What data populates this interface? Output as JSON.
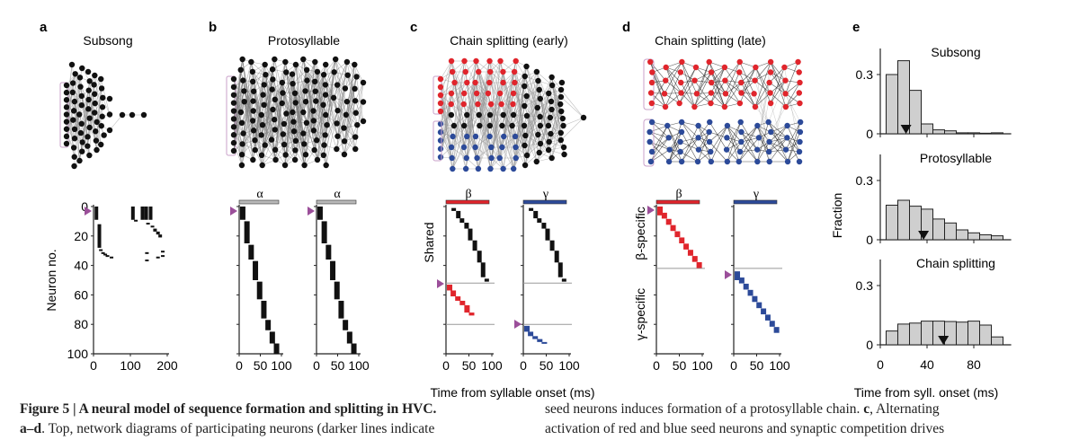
{
  "panels": [
    {
      "letter": "a",
      "title": "Subsong"
    },
    {
      "letter": "b",
      "title": "Protosyllable"
    },
    {
      "letter": "c",
      "title": "Chain splitting (early)"
    },
    {
      "letter": "d",
      "title": "Chain splitting (late)"
    },
    {
      "letter": "e"
    }
  ],
  "colors": {
    "red": "#e0252c",
    "blue": "#2c4a99",
    "seed": "#9b4f9a",
    "bar_fill": "#cfcfcf",
    "gray_bar": "#b8b8b8"
  },
  "raster": {
    "a": {
      "ylabel": "Neuron no.",
      "yticks": [
        "0",
        "20",
        "40",
        "60",
        "80",
        "100"
      ],
      "xticks": [
        "0",
        "100",
        "200"
      ]
    },
    "b": {
      "labels": [
        "α",
        "α"
      ],
      "xticks": [
        "0",
        "50",
        "100"
      ]
    },
    "c": {
      "labels": [
        "β",
        "γ"
      ],
      "ylabel": "Shared",
      "xticks": [
        "0",
        "50",
        "100"
      ]
    },
    "d": {
      "labels": [
        "β",
        "γ"
      ],
      "ylabel_top": "β-specific",
      "ylabel_bottom": "γ-specific",
      "xticks": [
        "0",
        "50",
        "100"
      ]
    },
    "xlabel": "Time from syllable onset (ms)"
  },
  "chart_data": [
    {
      "type": "bar",
      "title": "Subsong",
      "bins_ms": [
        5,
        15,
        25,
        35,
        45,
        55,
        65,
        75,
        85,
        95,
        105
      ],
      "values": [
        0.3,
        0.37,
        0.22,
        0.05,
        0.02,
        0.015,
        0.005,
        0.005,
        0.003,
        0.005
      ],
      "mean_ms": 22,
      "ylim": [
        0,
        0.4
      ],
      "yticks": [
        "0",
        "0.3"
      ]
    },
    {
      "type": "bar",
      "title": "Protosyllable",
      "bins_ms": [
        5,
        15,
        25,
        35,
        45,
        55,
        65,
        75,
        85,
        95,
        105
      ],
      "values": [
        0.175,
        0.2,
        0.17,
        0.155,
        0.105,
        0.085,
        0.05,
        0.035,
        0.025,
        0.02
      ],
      "mean_ms": 37,
      "ylim": [
        0,
        0.4
      ],
      "yticks": [
        "0",
        "0.3"
      ]
    },
    {
      "type": "bar",
      "title": "Chain splitting",
      "bins_ms": [
        5,
        15,
        25,
        35,
        45,
        55,
        65,
        75,
        85,
        95,
        105
      ],
      "values": [
        0.07,
        0.105,
        0.11,
        0.12,
        0.12,
        0.118,
        0.115,
        0.12,
        0.1,
        0.04
      ],
      "mean_ms": 54,
      "ylim": [
        0,
        0.4
      ],
      "yticks": [
        "0",
        "0.3"
      ],
      "xlabel": "Time from syll. onset (ms)",
      "xticks": [
        "0",
        "40",
        "80"
      ]
    }
  ],
  "e_ylabel": "Fraction",
  "caption": {
    "fig": "Figure 5",
    "title": "A neural model of sequence formation and splitting in HVC.",
    "line2_bold": "a–d",
    "line2": ". Top, network diagrams of participating neurons (darker lines indicate",
    "col2_line1_a": "seed neurons induces formation of a protosyllable chain. ",
    "col2_line1_b": "c",
    "col2_line1_c": ", Alternating",
    "col2_line2": "activation of red and blue seed neurons and synaptic competition drives"
  }
}
